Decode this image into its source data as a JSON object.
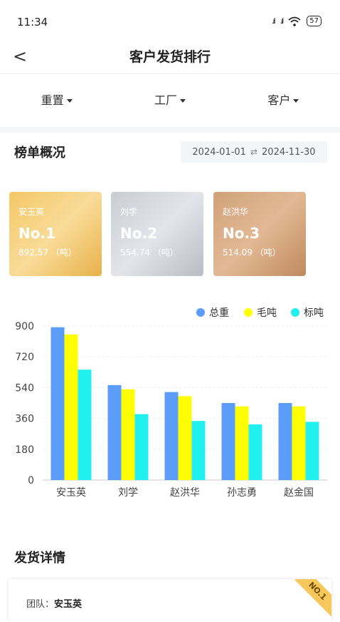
{
  "status": {
    "time": "11:34",
    "signal1": ".ıl",
    "signal2": ".ıl",
    "wifi": "wifi",
    "battery": "57"
  },
  "nav": {
    "back_icon": "<",
    "title": "客户发货排行"
  },
  "filters": [
    {
      "label": "重置"
    },
    {
      "label": "工厂"
    },
    {
      "label": "客户"
    }
  ],
  "overview": {
    "title": "榜单概况",
    "start_date": "2024-01-01",
    "swap_icon": "⇄",
    "end_date": "2024-11-30"
  },
  "top3": [
    {
      "name": "安玉英",
      "rank": "No.1",
      "value": "892.57 （吨）"
    },
    {
      "name": "刘学",
      "rank": "No.2",
      "value": "554.74 （吨）"
    },
    {
      "name": "赵洪华",
      "rank": "No.3",
      "value": "514.09 （吨）"
    }
  ],
  "colors": {
    "total": "#5a9cf7",
    "gross": "#ffff00",
    "standard": "#22f0f0"
  },
  "chart_data": {
    "type": "bar",
    "categories": [
      "安玉英",
      "刘学",
      "赵洪华",
      "孙志勇",
      "赵金国"
    ],
    "series": [
      {
        "name": "总重",
        "values": [
          892.57,
          554.74,
          514.09,
          450,
          450
        ]
      },
      {
        "name": "毛吨",
        "values": [
          850,
          530,
          490,
          430,
          430
        ]
      },
      {
        "name": "标吨",
        "values": [
          645,
          385,
          345,
          325,
          340
        ]
      }
    ],
    "yticks": [
      "0",
      "180",
      "360",
      "540",
      "720",
      "900"
    ],
    "ylim": [
      0,
      900
    ],
    "legend_position": "top-right",
    "grid": true
  },
  "details": {
    "title": "发货详情",
    "team_label": "团队：",
    "team_value": "安玉英",
    "badge": "NO.1"
  }
}
